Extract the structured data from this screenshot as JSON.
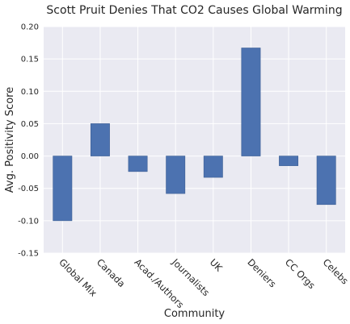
{
  "chart_data": {
    "type": "bar",
    "title": "Scott Pruit Denies That CO2 Causes Global Warming",
    "xlabel": "Community",
    "ylabel": "Avg. Positivity Score",
    "categories": [
      "Global Mix",
      "Canada",
      "Acad./Authors",
      "Journalists",
      "UK",
      "Deniers",
      "CC Orgs",
      "Celebs"
    ],
    "values": [
      -0.1,
      0.05,
      -0.024,
      -0.058,
      -0.033,
      0.167,
      -0.015,
      -0.075
    ],
    "ylim": [
      -0.15,
      0.2
    ],
    "yticks": [
      "-0.15",
      "-0.10",
      "-0.05",
      "0.00",
      "0.05",
      "0.10",
      "0.15",
      "0.20"
    ],
    "grid": true,
    "colors": {
      "bar": "#4c72b0",
      "background": "#eaeaf2",
      "grid": "#ffffff",
      "text": "#262626"
    }
  }
}
